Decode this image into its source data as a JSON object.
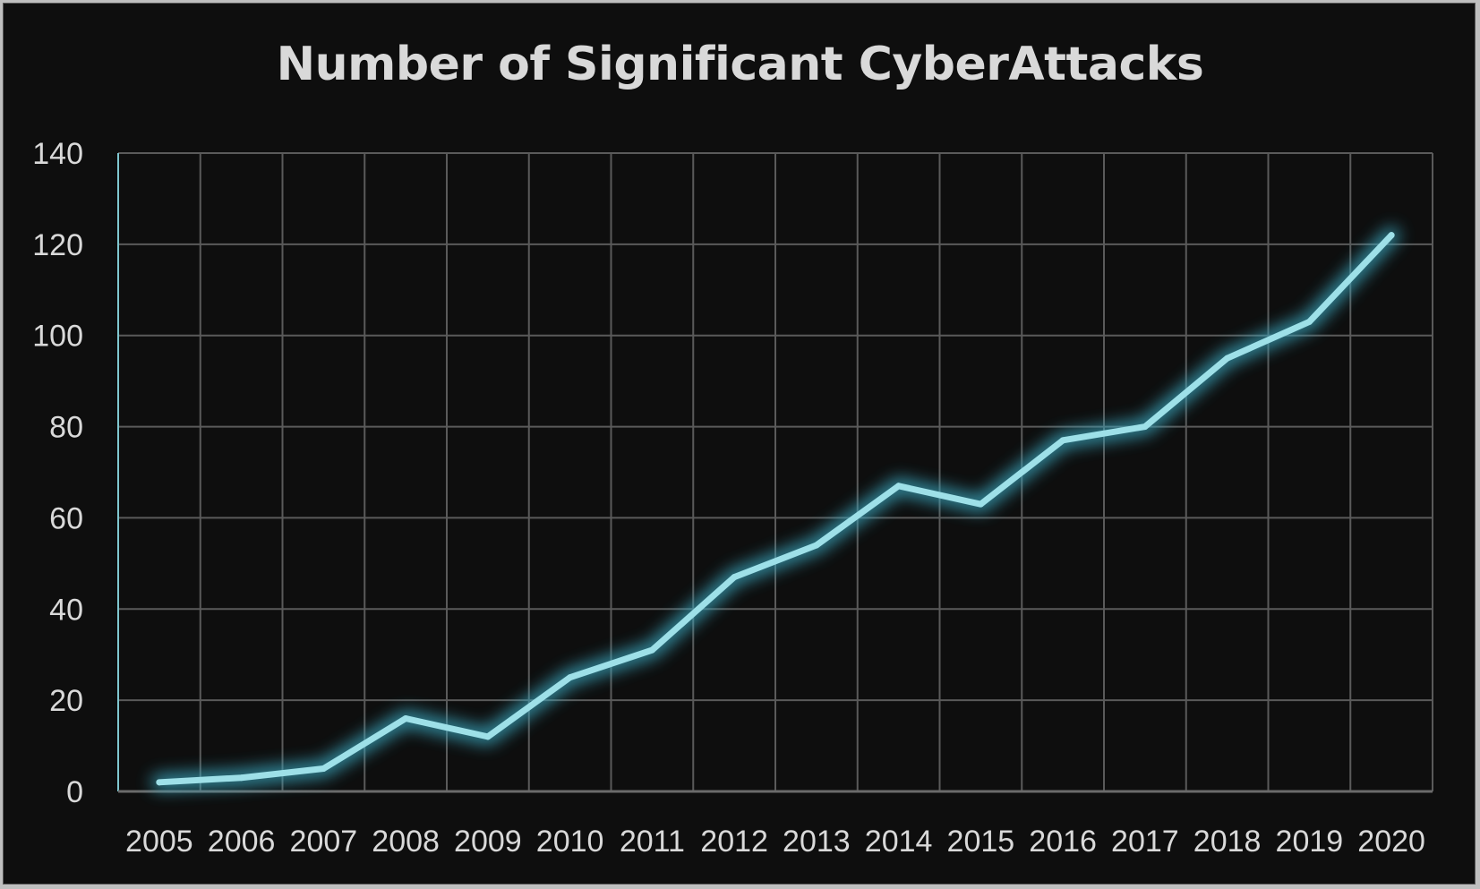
{
  "chart_data": {
    "type": "line",
    "title": "Number of Significant CyberAttacks",
    "xlabel": "",
    "ylabel": "",
    "categories": [
      "2005",
      "2006",
      "2007",
      "2008",
      "2009",
      "2010",
      "2011",
      "2012",
      "2013",
      "2014",
      "2015",
      "2016",
      "2017",
      "2018",
      "2019",
      "2020"
    ],
    "series": [
      {
        "values": [
          2,
          3,
          5,
          16,
          12,
          25,
          31,
          47,
          54,
          67,
          63,
          77,
          80,
          95,
          103,
          122
        ]
      }
    ],
    "ylim": [
      0,
      140
    ],
    "yticks": [
      "0",
      "20",
      "40",
      "60",
      "80",
      "100",
      "120",
      "140"
    ],
    "grid": true,
    "legend": "none",
    "colors": {
      "background": "#0e0e0e",
      "line": "#9ee0e8",
      "glow": "#3aa8c0",
      "grid": "#5a5a5a",
      "text": "#d9d9d9"
    }
  }
}
